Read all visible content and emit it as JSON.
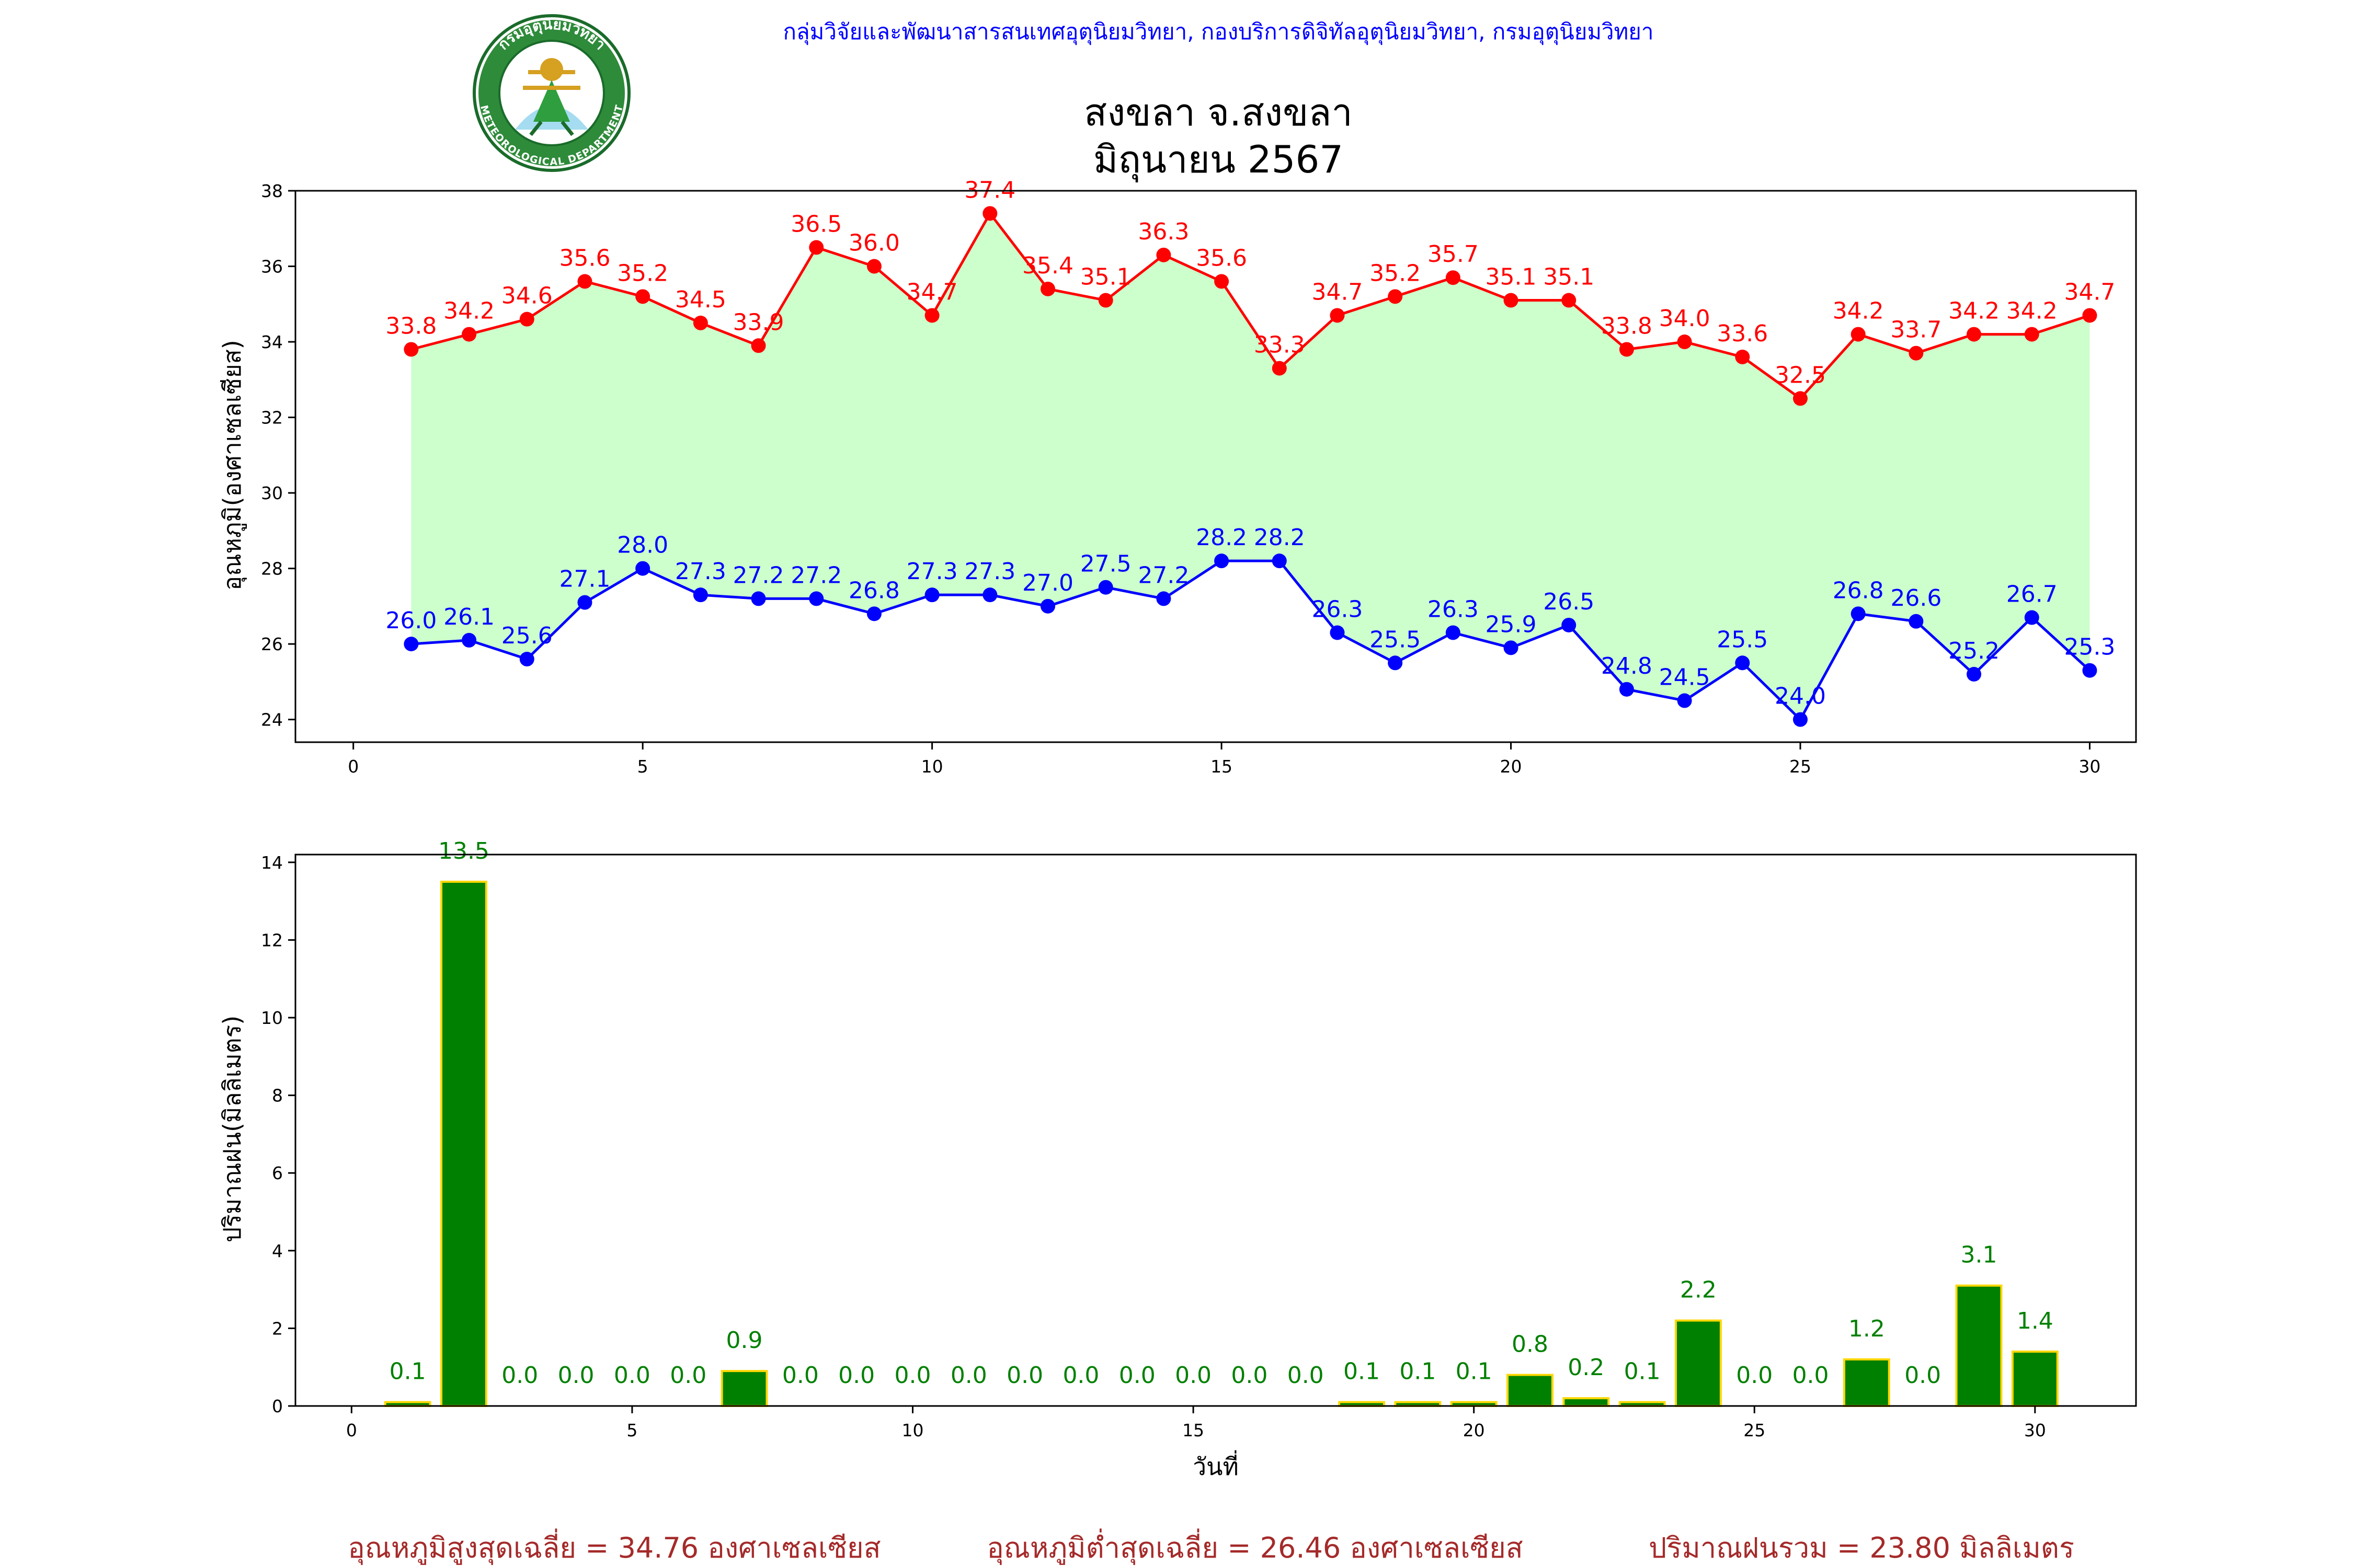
{
  "header": {
    "credit": "กลุ่มวิจัยและพัฒนาสารสนเทศอุตุนิยมวิทยา, กองบริการดิจิทัลอุตุนิยมวิทยา, กรมอุตุนิยมวิทยา",
    "title_line1": "สงขลา จ.สงขลา",
    "title_line2": "มิถุนายน 2567",
    "logo": {
      "icon": "meteorological-department-seal-icon",
      "top_text": "กรมอุตุนิยมวิทยา",
      "bottom_text": "METEOROLOGICAL DEPARTMENT"
    }
  },
  "colors": {
    "max": "#ff0000",
    "min": "#0000ff",
    "fill": "#ccffcc",
    "bar": "#008000",
    "bar_edge": "#ffd700",
    "summary": "#a52a2a"
  },
  "chart_data": [
    {
      "type": "line",
      "ylabel": "อุณหภูมิ(องศาเซลเซียส)",
      "xlim": [
        -1,
        30.8
      ],
      "ylim": [
        23.4,
        38
      ],
      "xticks": [
        0,
        5,
        10,
        15,
        20,
        25,
        30
      ],
      "yticks": [
        24,
        26,
        28,
        30,
        32,
        34,
        36,
        38
      ],
      "fill_between": true,
      "x": [
        1,
        2,
        3,
        4,
        5,
        6,
        7,
        8,
        9,
        10,
        11,
        12,
        13,
        14,
        15,
        16,
        17,
        18,
        19,
        20,
        21,
        22,
        23,
        24,
        25,
        26,
        27,
        28,
        29,
        30
      ],
      "series": [
        {
          "key": "max",
          "values": [
            33.8,
            34.2,
            34.6,
            35.6,
            35.2,
            34.5,
            33.9,
            36.5,
            36.0,
            34.7,
            37.4,
            35.4,
            35.1,
            36.3,
            35.6,
            33.3,
            34.7,
            35.2,
            35.7,
            35.1,
            35.1,
            33.8,
            34.0,
            33.6,
            32.5,
            34.2,
            33.7,
            34.2,
            34.2,
            34.7
          ]
        },
        {
          "key": "min",
          "values": [
            26.0,
            26.1,
            25.6,
            27.1,
            28.0,
            27.3,
            27.2,
            27.2,
            26.8,
            27.3,
            27.3,
            27.0,
            27.5,
            27.2,
            28.2,
            28.2,
            26.3,
            25.5,
            26.3,
            25.9,
            26.5,
            24.8,
            24.5,
            25.5,
            24.0,
            26.8,
            26.6,
            25.2,
            26.7,
            25.3
          ]
        }
      ]
    },
    {
      "type": "bar",
      "ylabel": "ปริมาณฝน(มิลลิเมตร)",
      "xlabel": "วันที่",
      "xlim": [
        -1,
        31.8
      ],
      "ylim": [
        0,
        14.2
      ],
      "xticks": [
        0,
        5,
        10,
        15,
        20,
        25,
        30
      ],
      "yticks": [
        0,
        2,
        4,
        6,
        8,
        10,
        12,
        14
      ],
      "x": [
        1,
        2,
        3,
        4,
        5,
        6,
        7,
        8,
        9,
        10,
        11,
        12,
        13,
        14,
        15,
        16,
        17,
        18,
        19,
        20,
        21,
        22,
        23,
        24,
        25,
        26,
        27,
        28,
        29,
        30
      ],
      "values": [
        0.1,
        13.5,
        0.0,
        0.0,
        0.0,
        0.0,
        0.9,
        0.0,
        0.0,
        0.0,
        0.0,
        0.0,
        0.0,
        0.0,
        0.0,
        0.0,
        0.0,
        0.1,
        0.1,
        0.1,
        0.8,
        0.2,
        0.1,
        2.2,
        0.0,
        0.0,
        1.2,
        0.0,
        3.1,
        1.4
      ]
    }
  ],
  "summary": {
    "avg_max": "อุณหภูมิสูงสุดเฉลี่ย = 34.76 องศาเซลเซียส",
    "avg_min": "อุณหภูมิต่ำสุดเฉลี่ย = 26.46 องศาเซลเซียส",
    "total_rain": "ปริมาณฝนรวม = 23.80 มิลลิเมตร"
  }
}
